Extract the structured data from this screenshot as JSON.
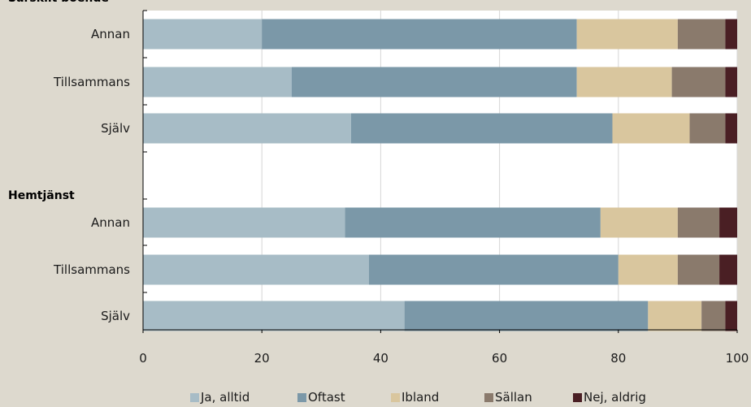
{
  "chart_data": {
    "type": "bar",
    "orientation": "horizontal",
    "stacked": true,
    "groups": [
      {
        "label": "Särskilt boende",
        "categories": [
          "Annan",
          "Tillsammans",
          "Själv"
        ],
        "series_values": [
          [
            20,
            53,
            17,
            8,
            2
          ],
          [
            25,
            48,
            16,
            9,
            2
          ],
          [
            35,
            44,
            13,
            6,
            2
          ]
        ]
      },
      {
        "label": "Hemtjänst",
        "categories": [
          "Annan",
          "Tillsammans",
          "Själv"
        ],
        "series_values": [
          [
            34,
            43,
            13,
            7,
            3
          ],
          [
            38,
            42,
            10,
            7,
            3
          ],
          [
            44,
            41,
            9,
            4,
            2
          ]
        ]
      }
    ],
    "series": [
      {
        "name": "Ja, alltid",
        "color": "#a7bcc6"
      },
      {
        "name": "Oftast",
        "color": "#7b98a8"
      },
      {
        "name": "Ibland",
        "color": "#d9c69e"
      },
      {
        "name": "Sällan",
        "color": "#8a7a6c"
      },
      {
        "name": "Nej, aldrig",
        "color": "#4a1f24"
      }
    ],
    "x_ticks": [
      0,
      20,
      40,
      60,
      80,
      100
    ],
    "xlim": [
      0,
      100
    ],
    "grid": true,
    "legend_position": "bottom"
  }
}
